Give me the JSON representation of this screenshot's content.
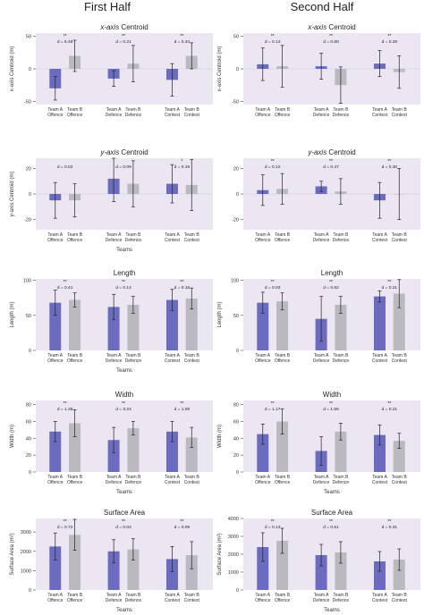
{
  "columns": [
    "First Half",
    "Second Half"
  ],
  "colors": {
    "team_a": "#6b6cc0",
    "team_b": "#b9b9bf",
    "panel_bg": "#ece6f2",
    "error": "#222222"
  },
  "chart_data": [
    {
      "type": "bar",
      "column": 0,
      "title": "x-axis Centroid",
      "italic_prefix": true,
      "ylabel": "x-axis Centroid (m)",
      "xlabel": "",
      "ylim": [
        -55,
        55
      ],
      "yticks": [
        -50,
        0,
        50
      ],
      "groups": [
        {
          "labels": [
            "Team A\nOffence",
            "Team B\nOffence"
          ],
          "values": [
            -30,
            20
          ],
          "errors": [
            18,
            24
          ],
          "effect": "d = 6.48",
          "sig": "**"
        },
        {
          "labels": [
            "Team A\nDefence",
            "Team B\nDefence"
          ],
          "values": [
            -15,
            8
          ],
          "errors": [
            12,
            28
          ],
          "effect": "d = 0.21",
          "sig": "**"
        },
        {
          "labels": [
            "Team A\nContest",
            "Team B\nContest"
          ],
          "values": [
            -17,
            20
          ],
          "errors": [
            25,
            20
          ],
          "effect": "d = 0.34",
          "sig": "**"
        }
      ]
    },
    {
      "type": "bar",
      "column": 1,
      "title": "x-axis Centroid",
      "italic_prefix": true,
      "ylabel": "x-axis Centroid (m)",
      "xlabel": "",
      "ylim": [
        -55,
        55
      ],
      "yticks": [
        -50,
        0,
        50
      ],
      "groups": [
        {
          "labels": [
            "Team A\nOffence",
            "Team B\nOffence"
          ],
          "values": [
            7,
            4
          ],
          "errors": [
            25,
            32
          ],
          "effect": "d = 0.13",
          "sig": "**"
        },
        {
          "labels": [
            "Team A\nDefence",
            "Team B\nDefence"
          ],
          "values": [
            4,
            -25
          ],
          "errors": [
            20,
            28
          ],
          "effect": "d = 0.80",
          "sig": "**"
        },
        {
          "labels": [
            "Team A\nContest",
            "Team B\nContest"
          ],
          "values": [
            8,
            -5
          ],
          "errors": [
            20,
            25
          ],
          "effect": "d = 0.28",
          "sig": "**"
        }
      ]
    },
    {
      "type": "bar",
      "column": 0,
      "title": "y-axis Centroid",
      "italic_prefix": true,
      "ylabel": "y-axis Centroid (m)",
      "xlabel": "Teams",
      "ylim": [
        -28,
        28
      ],
      "yticks": [
        -20,
        0,
        20
      ],
      "groups": [
        {
          "labels": [
            "Team A\nOffence",
            "Team B\nOffence"
          ],
          "values": [
            -5,
            -5
          ],
          "errors": [
            14,
            13
          ],
          "effect": "d = 0.02",
          "sig": ""
        },
        {
          "labels": [
            "Team A\nDefence",
            "Team B\nDefence"
          ],
          "values": [
            12,
            8
          ],
          "errors": [
            18,
            18
          ],
          "effect": "d = 0.09",
          "sig": ""
        },
        {
          "labels": [
            "Team A\nContest",
            "Team B\nContest"
          ],
          "values": [
            8,
            7
          ],
          "errors": [
            15,
            20
          ],
          "effect": "d = 0.19",
          "sig": "*"
        }
      ]
    },
    {
      "type": "bar",
      "column": 1,
      "title": "y-axis Centroid",
      "italic_prefix": true,
      "ylabel": "",
      "xlabel": "",
      "ylim": [
        -28,
        28
      ],
      "yticks": [
        -20,
        0,
        20
      ],
      "groups": [
        {
          "labels": [
            "Team A\nOffence",
            "Team B\nOffence"
          ],
          "values": [
            3,
            4
          ],
          "errors": [
            12,
            12
          ],
          "effect": "d = 0.12",
          "sig": "**"
        },
        {
          "labels": [
            "Team A\nDefence",
            "Team B\nDefence"
          ],
          "values": [
            6,
            2
          ],
          "errors": [
            4,
            10
          ],
          "effect": "d = 0.47",
          "sig": "**"
        },
        {
          "labels": [
            "Team A\nContest",
            "Team B\nContest"
          ],
          "values": [
            -5,
            0
          ],
          "errors": [
            14,
            20
          ],
          "effect": "d = 0.30",
          "sig": "**"
        }
      ]
    },
    {
      "type": "bar",
      "column": 0,
      "title": "Length",
      "italic_prefix": false,
      "ylabel": "Length (m)",
      "xlabel": "Teams",
      "ylim": [
        0,
        102
      ],
      "yticks": [
        0,
        50,
        100
      ],
      "groups": [
        {
          "labels": [
            "Team A\nOffence",
            "Team B\nOffence"
          ],
          "values": [
            68,
            72
          ],
          "errors": [
            18,
            10
          ],
          "effect": "d = 0.41",
          "sig": "**"
        },
        {
          "labels": [
            "Team A\nDefence",
            "Team B\nDefence"
          ],
          "values": [
            62,
            65
          ],
          "errors": [
            18,
            12
          ],
          "effect": "d = 0.14",
          "sig": "**"
        },
        {
          "labels": [
            "Team A\nContest",
            "Team B\nContest"
          ],
          "values": [
            72,
            74
          ],
          "errors": [
            15,
            15
          ],
          "effect": "d = 0.16",
          "sig": "**"
        }
      ]
    },
    {
      "type": "bar",
      "column": 1,
      "title": "Length",
      "italic_prefix": false,
      "ylabel": "Length (m)",
      "xlabel": "",
      "ylim": [
        0,
        102
      ],
      "yticks": [
        0,
        50,
        100
      ],
      "groups": [
        {
          "labels": [
            "Team A\nOffence",
            "Team B\nOffence"
          ],
          "values": [
            68,
            70
          ],
          "errors": [
            15,
            12
          ],
          "effect": "d = 0.03",
          "sig": "**"
        },
        {
          "labels": [
            "Team A\nDefence",
            "Team B\nDefence"
          ],
          "values": [
            45,
            65
          ],
          "errors": [
            32,
            12
          ],
          "effect": "d = 0.82",
          "sig": "**"
        },
        {
          "labels": [
            "Team A\nContest",
            "Team B\nContest"
          ],
          "values": [
            77,
            81
          ],
          "errors": [
            8,
            20
          ],
          "effect": "d = 0.21",
          "sig": "**"
        }
      ]
    },
    {
      "type": "bar",
      "column": 0,
      "title": "Width",
      "italic_prefix": false,
      "ylabel": "Width (m)",
      "xlabel": "Teams",
      "ylim": [
        0,
        85
      ],
      "yticks": [
        0,
        20,
        40,
        60,
        80
      ],
      "groups": [
        {
          "labels": [
            "Team A\nOffence",
            "Team B\nOffence"
          ],
          "values": [
            48,
            58
          ],
          "errors": [
            12,
            16
          ],
          "effect": "d = 1.38",
          "sig": "**"
        },
        {
          "labels": [
            "Team A\nDefence",
            "Team B\nDefence"
          ],
          "values": [
            38,
            52
          ],
          "errors": [
            15,
            8
          ],
          "effect": "d = 3.24",
          "sig": "**"
        },
        {
          "labels": [
            "Team A\nContest",
            "Team B\nContest"
          ],
          "values": [
            48,
            41
          ],
          "errors": [
            12,
            12
          ],
          "effect": "d = 1.08",
          "sig": "**"
        }
      ]
    },
    {
      "type": "bar",
      "column": 1,
      "title": "Width",
      "italic_prefix": false,
      "ylabel": "Width (m)",
      "xlabel": "Teams",
      "ylim": [
        0,
        85
      ],
      "yticks": [
        0,
        20,
        40,
        60,
        80
      ],
      "groups": [
        {
          "labels": [
            "Team A\nOffence",
            "Team B\nOffence"
          ],
          "values": [
            45,
            60
          ],
          "errors": [
            12,
            15
          ],
          "effect": "d = 1.17",
          "sig": "**"
        },
        {
          "labels": [
            "Team A\nDefence",
            "Team B\nDefence"
          ],
          "values": [
            25,
            48
          ],
          "errors": [
            17,
            10
          ],
          "effect": "d = 1.56",
          "sig": "**"
        },
        {
          "labels": [
            "Team A\nContest",
            "Team B\nContest"
          ],
          "values": [
            44,
            37
          ],
          "errors": [
            12,
            9
          ],
          "effect": "d = 0.21",
          "sig": "**"
        }
      ]
    },
    {
      "type": "bar",
      "column": 0,
      "title": "Surface Area",
      "italic_prefix": false,
      "ylabel": "Surface Area (m²)",
      "xlabel": "Teams",
      "ylim": [
        0,
        3700
      ],
      "yticks": [
        0,
        1000,
        2000,
        3000
      ],
      "groups": [
        {
          "labels": [
            "Team A\nOffence",
            "Team B\nOffence"
          ],
          "values": [
            2250,
            2850
          ],
          "errors": [
            700,
            800
          ],
          "effect": "d = 0.72",
          "sig": "**"
        },
        {
          "labels": [
            "Team A\nDefence",
            "Team B\nDefence"
          ],
          "values": [
            2000,
            2100
          ],
          "errors": [
            600,
            550
          ],
          "effect": "d = 0.04",
          "sig": "**"
        },
        {
          "labels": [
            "Team A\nContest",
            "Team B\nContest"
          ],
          "values": [
            1600,
            1800
          ],
          "errors": [
            650,
            700
          ],
          "effect": "d = 0.09",
          "sig": "**"
        }
      ]
    },
    {
      "type": "bar",
      "column": 1,
      "title": "Surface Area",
      "italic_prefix": false,
      "ylabel": "Surface Area (m²)",
      "xlabel": "Teams",
      "ylim": [
        0,
        4000
      ],
      "yticks": [
        0,
        1000,
        2000,
        3000,
        4000
      ],
      "groups": [
        {
          "labels": [
            "Team A\nOffence",
            "Team B\nOffence"
          ],
          "values": [
            2400,
            2750
          ],
          "errors": [
            800,
            700
          ],
          "effect": "d = 0.13",
          "sig": "**"
        },
        {
          "labels": [
            "Team A\nDefence",
            "Team B\nDefence"
          ],
          "values": [
            1950,
            2100
          ],
          "errors": [
            600,
            600
          ],
          "effect": "d = 0.51",
          "sig": "**"
        },
        {
          "labels": [
            "Team A\nContest",
            "Team B\nContest"
          ],
          "values": [
            1600,
            1700
          ],
          "errors": [
            550,
            600
          ],
          "effect": "d = 0.31",
          "sig": "**"
        }
      ]
    }
  ]
}
